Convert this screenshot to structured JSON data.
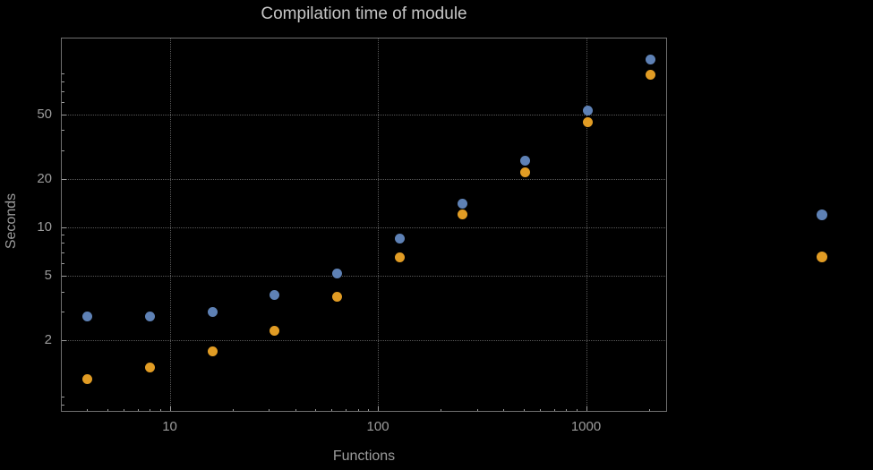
{
  "chart_data": {
    "type": "scatter",
    "title": "Compilation time of module",
    "xlabel": "Functions",
    "ylabel": "Seconds",
    "x_scale": "log",
    "y_scale": "log",
    "grid": true,
    "grid_style": "dotted",
    "xlim": [
      3,
      2450
    ],
    "ylim": [
      0.72,
      150
    ],
    "x_ticks": [
      10,
      100,
      1000
    ],
    "y_ticks": [
      2,
      5,
      10,
      20,
      50
    ],
    "x": [
      4,
      8,
      16,
      32,
      64,
      128,
      256,
      512,
      1024,
      2048
    ],
    "series": [
      {
        "name": "series-1-blue",
        "color": "#5E81B5",
        "values": [
          2.8,
          2.8,
          3.0,
          3.8,
          5.2,
          8.5,
          14,
          26,
          53,
          110
        ]
      },
      {
        "name": "series-2-orange",
        "color": "#E19C24",
        "values": [
          1.15,
          1.35,
          1.7,
          2.3,
          3.7,
          6.5,
          12,
          22,
          45,
          88
        ]
      }
    ],
    "legend": {
      "position": "right-of-frame",
      "entries": [
        {
          "marker": "dot",
          "marker_color": "#5E81B5",
          "label": ""
        },
        {
          "marker": "dot",
          "marker_color": "#E19C24",
          "label": ""
        }
      ]
    },
    "colors": {
      "background": "#000000",
      "frame": "#6f6f6f",
      "grid": "#585858",
      "text": "#9c9c9c",
      "title_text": "#c6c6c6"
    }
  }
}
